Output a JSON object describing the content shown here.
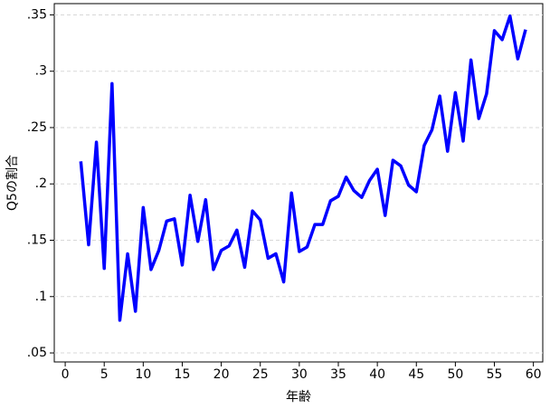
{
  "chart_data": {
    "type": "line",
    "x_label": "年齢",
    "y_label": "Q5の割合",
    "x": [
      2,
      3,
      4,
      5,
      6,
      7,
      8,
      9,
      10,
      11,
      12,
      13,
      14,
      15,
      16,
      17,
      18,
      19,
      20,
      21,
      22,
      23,
      24,
      25,
      26,
      27,
      28,
      29,
      30,
      31,
      32,
      33,
      34,
      35,
      36,
      37,
      38,
      39,
      40,
      41,
      42,
      43,
      44,
      45,
      46,
      47,
      48,
      49,
      50,
      51,
      52,
      53,
      54,
      55,
      56,
      57,
      58,
      59
    ],
    "series": [
      {
        "color": "#0000ff",
        "values": [
          0.22,
          0.146,
          0.237,
          0.125,
          0.289,
          0.079,
          0.138,
          0.087,
          0.179,
          0.124,
          0.141,
          0.167,
          0.169,
          0.128,
          0.19,
          0.149,
          0.186,
          0.124,
          0.141,
          0.145,
          0.159,
          0.126,
          0.176,
          0.168,
          0.134,
          0.138,
          0.113,
          0.192,
          0.14,
          0.144,
          0.164,
          0.164,
          0.185,
          0.189,
          0.206,
          0.194,
          0.188,
          0.203,
          0.213,
          0.172,
          0.221,
          0.216,
          0.199,
          0.193,
          0.234,
          0.248,
          0.278,
          0.229,
          0.281,
          0.238,
          0.31,
          0.258,
          0.28,
          0.336,
          0.328,
          0.349,
          0.311,
          0.337
        ]
      }
    ],
    "xlim": [
      -1.4,
      61.2
    ],
    "ylim": [
      0.042,
      0.36
    ],
    "xticks": [
      0,
      5,
      10,
      15,
      20,
      25,
      30,
      35,
      40,
      45,
      50,
      55,
      60
    ],
    "yticks": [
      {
        "value": 0.05,
        "label": ".05"
      },
      {
        "value": 0.1,
        "label": ".1"
      },
      {
        "value": 0.15,
        "label": ".15"
      },
      {
        "value": 0.2,
        "label": ".2"
      },
      {
        "value": 0.25,
        "label": ".25"
      },
      {
        "value": 0.3,
        "label": ".3"
      },
      {
        "value": 0.35,
        "label": ".35"
      }
    ],
    "grid": true
  }
}
